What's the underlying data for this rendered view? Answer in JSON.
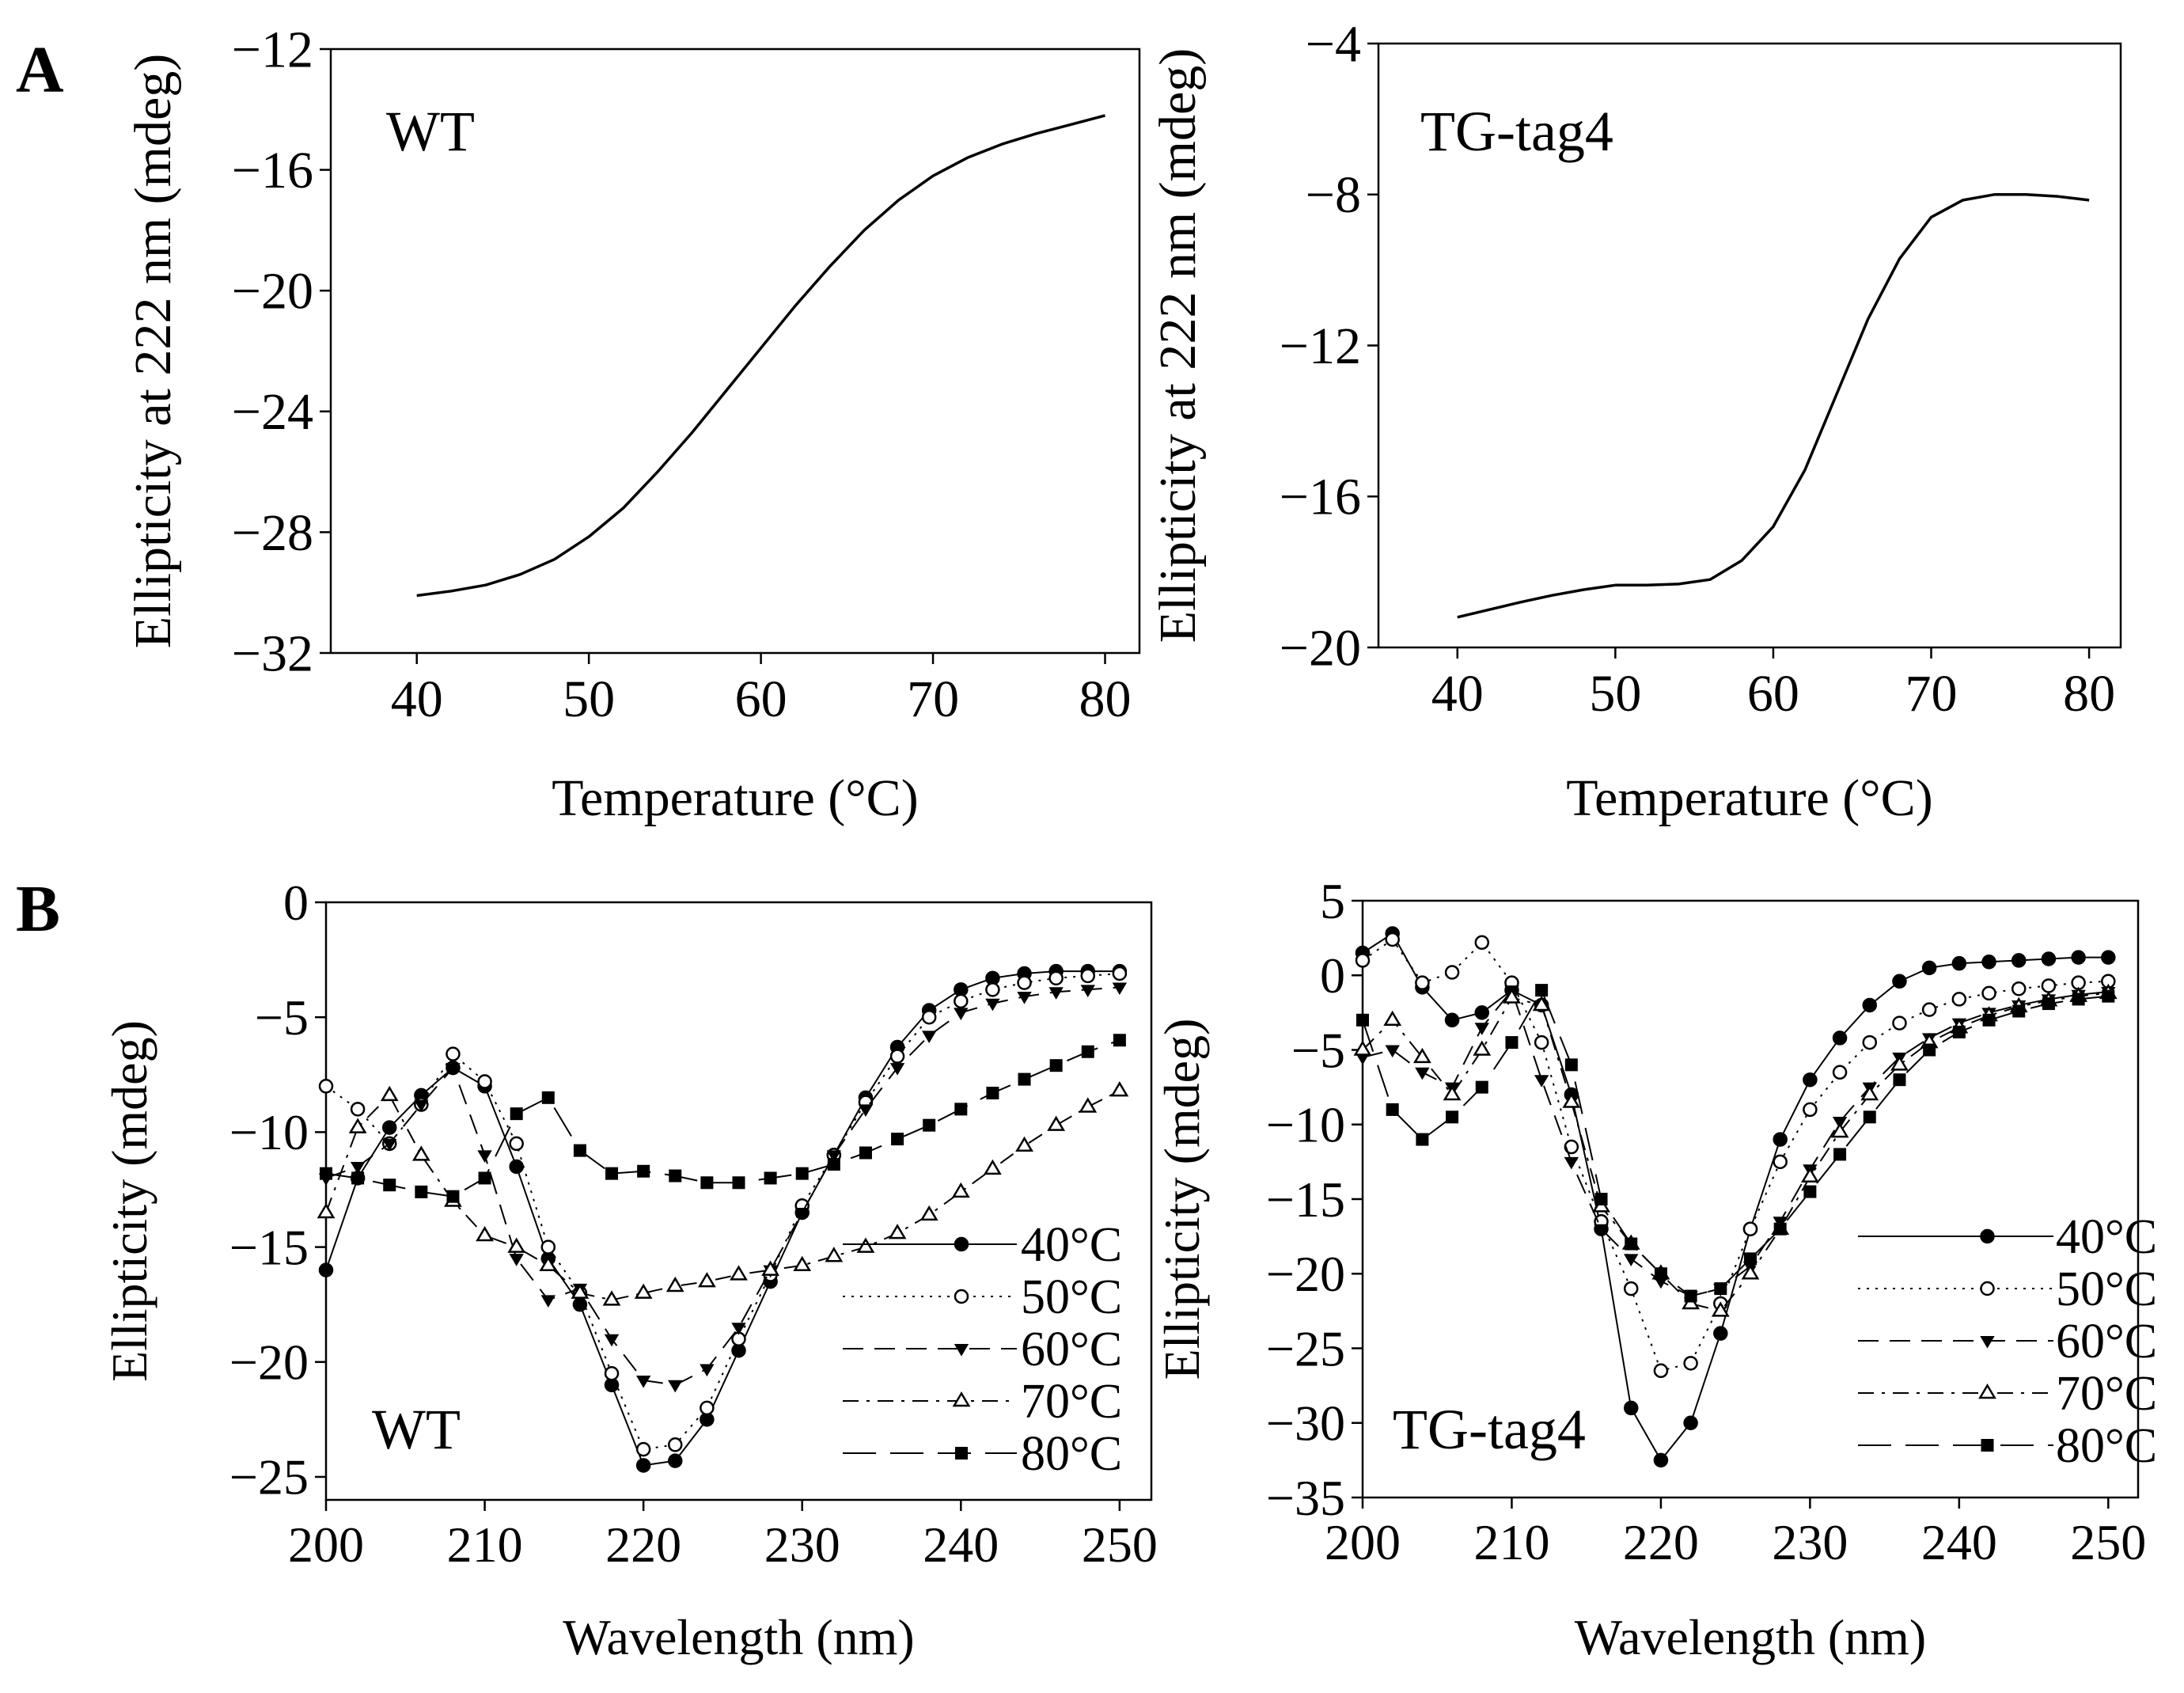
{
  "figure": {
    "panel_labels": [
      "A",
      "B"
    ]
  },
  "chart_data": [
    {
      "type": "line",
      "panel": "A",
      "inset_label": "WT",
      "xlabel": "Temperature (°C)",
      "ylabel": "Ellipticity at 222 nm (mdeg)",
      "xlim": [
        35,
        82
      ],
      "ylim": [
        -32,
        -12
      ],
      "xticks": [
        40,
        50,
        60,
        70,
        80
      ],
      "yticks": [
        -32,
        -28,
        -24,
        -20,
        -16,
        -12
      ],
      "tick_labels_x": [
        "40",
        "50",
        "60",
        "70",
        "80"
      ],
      "tick_labels_y": [
        "−32",
        "−28",
        "−24",
        "−20",
        "−16",
        "−12"
      ],
      "series": [
        {
          "name": "WT",
          "x": [
            40,
            42,
            44,
            46,
            48,
            50,
            52,
            54,
            56,
            58,
            60,
            62,
            64,
            66,
            68,
            70,
            72,
            74,
            76,
            78,
            80
          ],
          "y": [
            -30.1,
            -29.95,
            -29.75,
            -29.4,
            -28.9,
            -28.15,
            -27.2,
            -26.0,
            -24.7,
            -23.3,
            -21.9,
            -20.5,
            -19.2,
            -18.0,
            -17.0,
            -16.2,
            -15.6,
            -15.15,
            -14.8,
            -14.5,
            -14.2
          ]
        }
      ]
    },
    {
      "type": "line",
      "panel": "A",
      "inset_label": "TG-tag4",
      "xlabel": "Temperature (°C)",
      "ylabel": "Ellipticity at 222 nm (mdeg)",
      "xlim": [
        35,
        82
      ],
      "ylim": [
        -20,
        -4
      ],
      "xticks": [
        40,
        50,
        60,
        70,
        80
      ],
      "yticks": [
        -20,
        -16,
        -12,
        -8,
        -4
      ],
      "tick_labels_x": [
        "40",
        "50",
        "60",
        "70",
        "80"
      ],
      "tick_labels_y": [
        "−20",
        "−16",
        "−12",
        "−8",
        "−4"
      ],
      "series": [
        {
          "name": "TG-tag4",
          "x": [
            40,
            42,
            44,
            46,
            48,
            50,
            52,
            54,
            56,
            58,
            60,
            62,
            64,
            66,
            68,
            70,
            72,
            74,
            76,
            78,
            80
          ],
          "y": [
            -19.2,
            -19.0,
            -18.8,
            -18.62,
            -18.47,
            -18.35,
            -18.35,
            -18.32,
            -18.2,
            -17.7,
            -16.8,
            -15.3,
            -13.3,
            -11.3,
            -9.7,
            -8.6,
            -8.15,
            -8.0,
            -8.0,
            -8.05,
            -8.15
          ]
        }
      ]
    },
    {
      "type": "line",
      "panel": "B",
      "inset_label": "WT",
      "xlabel": "Wavelength (nm)",
      "ylabel": "Ellipticity (mdeg)",
      "xlim": [
        200,
        252
      ],
      "ylim": [
        -26,
        0
      ],
      "xticks": [
        200,
        210,
        220,
        230,
        240,
        250
      ],
      "yticks": [
        -25,
        -20,
        -15,
        -10,
        -5,
        0
      ],
      "tick_labels_x": [
        "200",
        "210",
        "220",
        "230",
        "240",
        "250"
      ],
      "tick_labels_y": [
        "−25",
        "−20",
        "−15",
        "−10",
        "−5",
        "0"
      ],
      "legend_position": "bottom-right",
      "series": [
        {
          "name": "40°C",
          "marker": "filled-circle",
          "dash": "solid",
          "x": [
            200,
            202,
            204,
            206,
            208,
            210,
            212,
            214,
            216,
            218,
            220,
            222,
            224,
            226,
            228,
            230,
            232,
            234,
            236,
            238,
            240,
            242,
            244,
            246,
            248,
            250
          ],
          "y": [
            -16.0,
            -12.0,
            -9.8,
            -8.4,
            -7.2,
            -8.0,
            -11.5,
            -15.5,
            -17.5,
            -21.0,
            -24.5,
            -24.3,
            -22.5,
            -19.5,
            -16.5,
            -13.5,
            -11.0,
            -8.5,
            -6.3,
            -4.7,
            -3.8,
            -3.3,
            -3.1,
            -3.0,
            -3.0,
            -3.0
          ]
        },
        {
          "name": "50°C",
          "marker": "open-circle",
          "dash": "dotted",
          "x": [
            200,
            202,
            204,
            206,
            208,
            210,
            212,
            214,
            216,
            218,
            220,
            222,
            224,
            226,
            228,
            230,
            232,
            234,
            236,
            238,
            240,
            242,
            244,
            246,
            248,
            250
          ],
          "y": [
            -8.0,
            -9.0,
            -10.5,
            -8.8,
            -6.6,
            -7.8,
            -10.5,
            -15.0,
            -17.0,
            -20.5,
            -23.8,
            -23.6,
            -22.0,
            -19.0,
            -16.2,
            -13.2,
            -11.0,
            -8.7,
            -6.7,
            -5.0,
            -4.3,
            -3.8,
            -3.5,
            -3.3,
            -3.2,
            -3.1
          ]
        },
        {
          "name": "60°C",
          "marker": "filled-triangle-down",
          "dash": "dashed",
          "x": [
            200,
            202,
            204,
            206,
            208,
            210,
            212,
            214,
            216,
            218,
            220,
            222,
            224,
            226,
            228,
            230,
            232,
            234,
            236,
            238,
            240,
            242,
            244,
            246,
            248,
            250
          ],
          "y": [
            -12.0,
            -11.5,
            -10.5,
            -8.8,
            -7.2,
            -11.0,
            -15.5,
            -17.3,
            -16.8,
            -19.0,
            -20.8,
            -21.0,
            -20.3,
            -18.5,
            -16.0,
            -13.5,
            -11.0,
            -9.0,
            -7.2,
            -5.8,
            -4.8,
            -4.4,
            -4.1,
            -3.9,
            -3.8,
            -3.7
          ]
        },
        {
          "name": "70°C",
          "marker": "open-triangle-up",
          "dash": "dash-dot",
          "x": [
            200,
            202,
            204,
            206,
            208,
            210,
            212,
            214,
            216,
            218,
            220,
            222,
            224,
            226,
            228,
            230,
            232,
            234,
            236,
            238,
            240,
            242,
            244,
            246,
            248,
            250
          ],
          "y": [
            -13.5,
            -9.8,
            -8.4,
            -11.0,
            -13.0,
            -14.5,
            -15.0,
            -15.8,
            -17.0,
            -17.3,
            -17.0,
            -16.7,
            -16.5,
            -16.2,
            -16.0,
            -15.8,
            -15.4,
            -15.0,
            -14.4,
            -13.6,
            -12.6,
            -11.6,
            -10.6,
            -9.7,
            -8.9,
            -8.2
          ]
        },
        {
          "name": "80°C",
          "marker": "filled-square",
          "dash": "long-dash",
          "x": [
            200,
            202,
            204,
            206,
            208,
            210,
            212,
            214,
            216,
            218,
            220,
            222,
            224,
            226,
            228,
            230,
            232,
            234,
            236,
            238,
            240,
            242,
            244,
            246,
            248,
            250
          ],
          "y": [
            -11.8,
            -12.0,
            -12.3,
            -12.6,
            -12.8,
            -12.0,
            -9.2,
            -8.5,
            -10.8,
            -11.8,
            -11.7,
            -11.9,
            -12.2,
            -12.2,
            -12.0,
            -11.8,
            -11.4,
            -10.9,
            -10.3,
            -9.7,
            -9.0,
            -8.3,
            -7.7,
            -7.1,
            -6.5,
            -6.0
          ]
        }
      ]
    },
    {
      "type": "line",
      "panel": "B",
      "inset_label": "TG-tag4",
      "xlabel": "Wavelength (nm)",
      "ylabel": "Ellipticity (mdeg)",
      "xlim": [
        200,
        252
      ],
      "ylim": [
        -35,
        5
      ],
      "xticks": [
        200,
        210,
        220,
        230,
        240,
        250
      ],
      "yticks": [
        -35,
        -30,
        -25,
        -20,
        -15,
        -10,
        -5,
        0,
        5
      ],
      "tick_labels_x": [
        "200",
        "210",
        "220",
        "230",
        "240",
        "250"
      ],
      "tick_labels_y": [
        "−35",
        "−30",
        "−25",
        "−20",
        "−15",
        "−10",
        "−5",
        "0",
        "5"
      ],
      "legend_position": "bottom-right",
      "series": [
        {
          "name": "40°C",
          "marker": "filled-circle",
          "dash": "solid",
          "x": [
            200,
            202,
            204,
            206,
            208,
            210,
            212,
            214,
            216,
            218,
            220,
            222,
            224,
            226,
            228,
            230,
            232,
            234,
            236,
            238,
            240,
            242,
            244,
            246,
            248,
            250
          ],
          "y": [
            1.5,
            2.8,
            -0.8,
            -3.0,
            -2.5,
            -1.0,
            -2.0,
            -8.0,
            -17.0,
            -29.0,
            -32.5,
            -30.0,
            -24.0,
            -17.0,
            -11.0,
            -7.0,
            -4.2,
            -2.0,
            -0.4,
            0.5,
            0.8,
            0.9,
            1.0,
            1.1,
            1.2,
            1.2
          ]
        },
        {
          "name": "50°C",
          "marker": "open-circle",
          "dash": "dotted",
          "x": [
            200,
            202,
            204,
            206,
            208,
            210,
            212,
            214,
            216,
            218,
            220,
            222,
            224,
            226,
            228,
            230,
            232,
            234,
            236,
            238,
            240,
            242,
            244,
            246,
            248,
            250
          ],
          "y": [
            1.0,
            2.4,
            -0.5,
            0.2,
            2.2,
            -0.5,
            -4.5,
            -11.5,
            -16.5,
            -21.0,
            -26.5,
            -26.0,
            -22.0,
            -17.0,
            -12.5,
            -9.0,
            -6.5,
            -4.5,
            -3.2,
            -2.3,
            -1.6,
            -1.2,
            -0.9,
            -0.7,
            -0.5,
            -0.4
          ]
        },
        {
          "name": "60°C",
          "marker": "filled-triangle-down",
          "dash": "dashed",
          "x": [
            200,
            202,
            204,
            206,
            208,
            210,
            212,
            214,
            216,
            218,
            220,
            222,
            224,
            226,
            228,
            230,
            232,
            234,
            236,
            238,
            240,
            242,
            244,
            246,
            248,
            250
          ],
          "y": [
            -5.5,
            -5.0,
            -6.5,
            -7.5,
            -3.5,
            -1.0,
            -7.0,
            -12.5,
            -17.0,
            -19.0,
            -20.5,
            -21.5,
            -21.0,
            -19.5,
            -16.5,
            -13.0,
            -9.8,
            -7.5,
            -5.5,
            -4.2,
            -3.2,
            -2.5,
            -2.0,
            -1.6,
            -1.3,
            -1.1
          ]
        },
        {
          "name": "70°C",
          "marker": "open-triangle-up",
          "dash": "dash-dot",
          "x": [
            200,
            202,
            204,
            206,
            208,
            210,
            212,
            214,
            216,
            218,
            220,
            222,
            224,
            226,
            228,
            230,
            232,
            234,
            236,
            238,
            240,
            242,
            244,
            246,
            248,
            250
          ],
          "y": [
            -5.0,
            -3.0,
            -5.5,
            -8.0,
            -5.0,
            -1.5,
            -2.0,
            -8.5,
            -15.5,
            -18.0,
            -20.0,
            -22.0,
            -22.5,
            -20.0,
            -17.0,
            -13.5,
            -10.5,
            -8.0,
            -6.0,
            -4.5,
            -3.5,
            -2.7,
            -2.1,
            -1.7,
            -1.4,
            -1.2
          ]
        },
        {
          "name": "80°C",
          "marker": "filled-square",
          "dash": "long-dash",
          "x": [
            200,
            202,
            204,
            206,
            208,
            210,
            212,
            214,
            216,
            218,
            220,
            222,
            224,
            226,
            228,
            230,
            232,
            234,
            236,
            238,
            240,
            242,
            244,
            246,
            248,
            250
          ],
          "y": [
            -3.0,
            -9.0,
            -11.0,
            -9.5,
            -7.5,
            -4.5,
            -1.0,
            -6.0,
            -15.0,
            -18.0,
            -20.0,
            -21.5,
            -21.0,
            -19.0,
            -17.0,
            -14.5,
            -12.0,
            -9.5,
            -7.0,
            -5.0,
            -3.8,
            -3.0,
            -2.4,
            -1.9,
            -1.6,
            -1.4
          ]
        }
      ]
    }
  ]
}
